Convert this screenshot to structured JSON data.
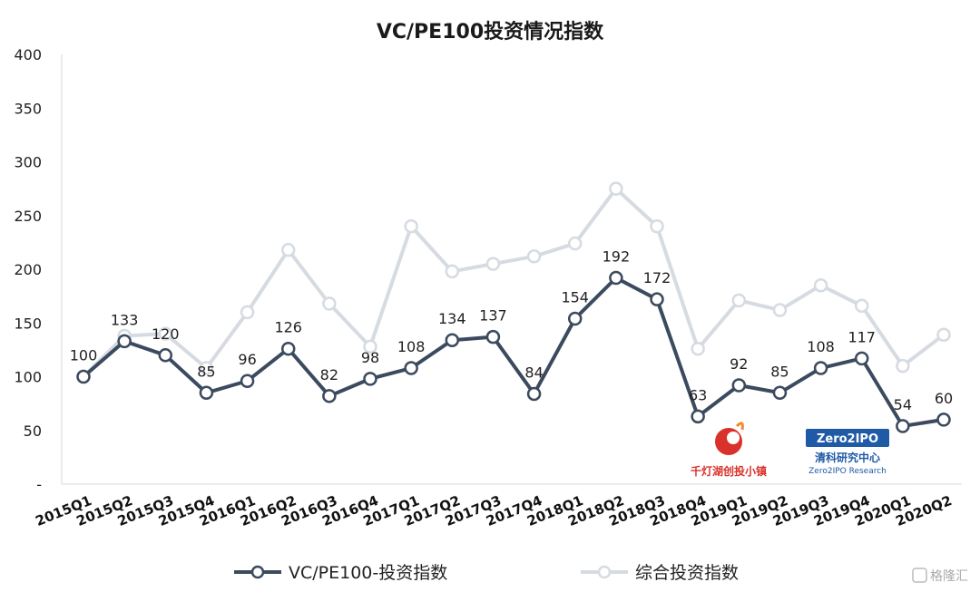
{
  "chart_data": {
    "type": "line",
    "title": "VC/PE100投资情况指数",
    "xlabel": "",
    "ylabel": "",
    "ylim": [
      0,
      400
    ],
    "y_ticks": [
      "-",
      "50",
      "100",
      "150",
      "200",
      "250",
      "300",
      "350",
      "400"
    ],
    "grid": false,
    "legend_position": "bottom",
    "categories": [
      "2015Q1",
      "2015Q2",
      "2015Q3",
      "2015Q4",
      "2016Q1",
      "2016Q2",
      "2016Q3",
      "2016Q4",
      "2017Q1",
      "2017Q2",
      "2017Q3",
      "2017Q4",
      "2018Q1",
      "2018Q2",
      "2018Q3",
      "2018Q4",
      "2019Q1",
      "2019Q2",
      "2019Q3",
      "2019Q4",
      "2020Q1",
      "2020Q2"
    ],
    "series": [
      {
        "name": "VC/PE100-投资指数",
        "color": "#3b4a5e",
        "values": [
          100,
          133,
          120,
          85,
          96,
          126,
          82,
          98,
          108,
          134,
          137,
          84,
          154,
          192,
          172,
          63,
          92,
          85,
          108,
          117,
          54,
          60
        ],
        "labels": [
          "100",
          "133",
          "120",
          "85",
          "96",
          "126",
          "82",
          "98",
          "108",
          "134",
          "137",
          "84",
          "154",
          "192",
          "172",
          "63",
          "92",
          "85",
          "108",
          "117",
          "54",
          "60"
        ]
      },
      {
        "name": "综合投资指数",
        "color": "#d6dbe2",
        "values": [
          100,
          138,
          140,
          108,
          160,
          218,
          168,
          128,
          240,
          198,
          205,
          212,
          224,
          275,
          240,
          126,
          171,
          162,
          185,
          166,
          110,
          139
        ]
      }
    ]
  },
  "logos": {
    "left": {
      "name": "qiandenghu-logo",
      "text": "千灯湖创投小镇",
      "color": "#d8322a"
    },
    "right": {
      "name": "zero2ipo-logo",
      "badge": "Zero2IPO",
      "text_cn": "清科研究中心",
      "text_en": "Zero2IPO Research",
      "color": "#1f5aa6"
    }
  },
  "watermark": {
    "text": "格隆汇"
  }
}
